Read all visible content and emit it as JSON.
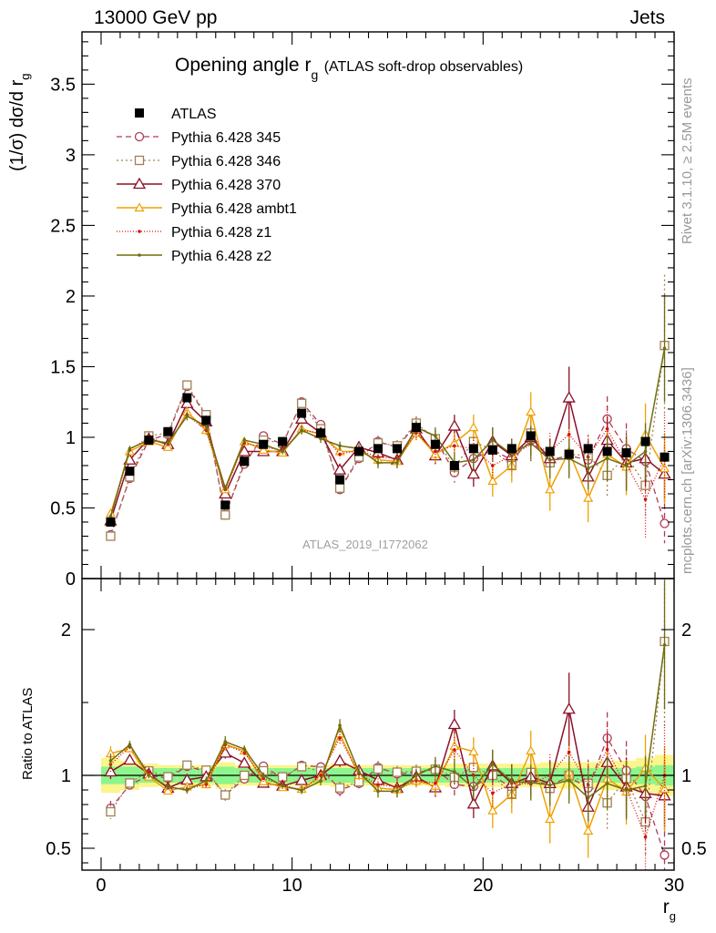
{
  "header": {
    "left": "13000 GeV pp",
    "right": "Jets"
  },
  "side": {
    "rivet": "Rivet 3.1.10, ≥ 2.5M events",
    "mcplots": "mcplots.cern.ch [arXiv:1306.3436]"
  },
  "chart_data": {
    "type": "line",
    "title_main": "Opening angle r",
    "title_sub": "g",
    "title_paren": "(ATLAS soft-drop observables)",
    "ylabel": "(1/σ) dσ/d r",
    "ylabel_sub": "g",
    "xlabel": "r",
    "xlabel_sub": "g",
    "watermark": "ATLAS_2019_I1772062",
    "ratio_ylabel": "Ratio to ATLAS",
    "xlim": [
      -1,
      30
    ],
    "ylim": [
      0,
      3.87
    ],
    "ratio_ylim": [
      0.35,
      2.35
    ],
    "x_ticks": [
      "0",
      "10",
      "20",
      "30"
    ],
    "y_ticks": [
      "0",
      "0.5",
      "1",
      "1.5",
      "2",
      "2.5",
      "3",
      "3.5"
    ],
    "ratio_ticks": [
      "0.5",
      "1",
      "2"
    ],
    "x": [
      0.5,
      1.5,
      2.5,
      3.5,
      4.5,
      5.5,
      6.5,
      7.5,
      8.5,
      9.5,
      10.5,
      11.5,
      12.5,
      13.5,
      14.5,
      15.5,
      16.5,
      17.5,
      18.5,
      19.5,
      20.5,
      21.5,
      22.5,
      23.5,
      24.5,
      25.5,
      26.5,
      27.5,
      28.5,
      29.5
    ],
    "data": {
      "name": "ATLAS",
      "values": [
        0.4,
        0.76,
        0.98,
        1.04,
        1.28,
        1.12,
        0.52,
        0.83,
        0.95,
        0.97,
        1.17,
        1.03,
        0.7,
        0.9,
        0.92,
        0.92,
        1.07,
        0.95,
        0.8,
        0.92,
        0.91,
        0.92,
        1.01,
        0.9,
        0.88,
        0.92,
        0.9,
        0.89,
        0.97,
        0.86
      ]
    },
    "bands": {
      "inner": [
        0.06,
        0.06,
        0.05,
        0.05,
        0.05,
        0.05,
        0.06,
        0.05,
        0.05,
        0.05,
        0.05,
        0.05,
        0.05,
        0.05,
        0.05,
        0.05,
        0.05,
        0.05,
        0.05,
        0.05,
        0.05,
        0.05,
        0.05,
        0.05,
        0.05,
        0.05,
        0.05,
        0.05,
        0.06,
        0.07
      ],
      "outer": [
        0.12,
        0.1,
        0.08,
        0.07,
        0.07,
        0.07,
        0.09,
        0.07,
        0.07,
        0.07,
        0.07,
        0.07,
        0.08,
        0.07,
        0.07,
        0.07,
        0.07,
        0.07,
        0.08,
        0.08,
        0.08,
        0.08,
        0.08,
        0.09,
        0.09,
        0.09,
        0.1,
        0.1,
        0.12,
        0.14
      ],
      "colors": {
        "inner": "#8cf58c",
        "outer": "#faf58c"
      }
    },
    "series": [
      {
        "name": "Pythia 6.428 345",
        "color": "#b03a5a",
        "dash": "6,4",
        "marker": "circle",
        "width": 1.3,
        "values": [
          0.31,
          0.71,
          0.98,
          1.02,
          1.36,
          1.15,
          0.45,
          0.81,
          1.01,
          0.95,
          1.25,
          1.09,
          0.63,
          0.85,
          0.97,
          0.93,
          1.09,
          0.99,
          0.75,
          0.85,
          0.91,
          0.84,
          0.98,
          0.84,
          0.87,
          0.84,
          1.13,
          0.92,
          0.83,
          0.39
        ],
        "errors": [
          0.02,
          0.02,
          0.02,
          0.02,
          0.03,
          0.03,
          0.02,
          0.02,
          0.02,
          0.02,
          0.03,
          0.03,
          0.03,
          0.03,
          0.04,
          0.04,
          0.05,
          0.06,
          0.07,
          0.08,
          0.09,
          0.1,
          0.12,
          0.12,
          0.14,
          0.14,
          0.16,
          0.18,
          0.22,
          0.14
        ]
      },
      {
        "name": "Pythia 6.428 346",
        "color": "#a08050",
        "dash": "2,3",
        "marker": "square",
        "width": 1.3,
        "values": [
          0.3,
          0.72,
          1.01,
          1.03,
          1.37,
          1.16,
          0.45,
          0.83,
          0.98,
          0.96,
          1.24,
          1.06,
          0.64,
          0.86,
          0.96,
          0.94,
          1.1,
          0.99,
          0.79,
          0.97,
          0.91,
          0.8,
          1.03,
          0.82,
          0.88,
          0.87,
          0.73,
          0.87,
          0.66,
          1.65
        ],
        "errors": [
          0.02,
          0.02,
          0.02,
          0.02,
          0.03,
          0.03,
          0.02,
          0.02,
          0.02,
          0.02,
          0.03,
          0.03,
          0.03,
          0.03,
          0.04,
          0.04,
          0.05,
          0.06,
          0.07,
          0.08,
          0.09,
          0.1,
          0.12,
          0.13,
          0.14,
          0.15,
          0.16,
          0.18,
          0.22,
          0.5
        ]
      },
      {
        "name": "Pythia 6.428 370",
        "color": "#8c1028",
        "dash": "",
        "marker": "triangle",
        "width": 1.5,
        "values": [
          0.41,
          0.84,
          0.99,
          0.95,
          1.24,
          1.11,
          0.6,
          0.9,
          0.9,
          0.9,
          1.13,
          1.03,
          0.77,
          0.93,
          0.89,
          0.84,
          1.06,
          0.87,
          1.08,
          0.74,
          0.97,
          0.87,
          1.0,
          0.85,
          1.28,
          0.72,
          0.98,
          0.82,
          0.85,
          0.74
        ],
        "errors": [
          0.02,
          0.02,
          0.02,
          0.02,
          0.03,
          0.03,
          0.02,
          0.02,
          0.02,
          0.02,
          0.03,
          0.03,
          0.03,
          0.03,
          0.04,
          0.04,
          0.05,
          0.06,
          0.08,
          0.09,
          0.1,
          0.12,
          0.13,
          0.14,
          0.22,
          0.16,
          0.17,
          0.18,
          0.2,
          0.2
        ]
      },
      {
        "name": "Pythia 6.428 ambt1",
        "color": "#f0a000",
        "dash": "",
        "marker": "triangle-small",
        "width": 1.5,
        "values": [
          0.46,
          0.9,
          0.97,
          0.93,
          1.18,
          1.05,
          0.63,
          0.97,
          0.91,
          0.89,
          1.06,
          1.02,
          0.9,
          0.9,
          0.84,
          0.83,
          1.03,
          0.88,
          0.96,
          1.07,
          0.69,
          0.8,
          1.18,
          0.63,
          0.9,
          0.57,
          0.88,
          0.79,
          1.02,
          0.78
        ],
        "errors": [
          0.02,
          0.02,
          0.02,
          0.02,
          0.03,
          0.03,
          0.02,
          0.02,
          0.02,
          0.02,
          0.03,
          0.03,
          0.03,
          0.03,
          0.04,
          0.04,
          0.05,
          0.06,
          0.07,
          0.09,
          0.11,
          0.12,
          0.14,
          0.15,
          0.16,
          0.17,
          0.18,
          0.2,
          0.22,
          0.25
        ]
      },
      {
        "name": "Pythia 6.428 z1",
        "color": "#d41010",
        "dash": "1,2",
        "marker": "dot",
        "width": 1.3,
        "values": [
          0.43,
          0.91,
          1.0,
          0.95,
          1.16,
          1.05,
          0.63,
          0.96,
          0.93,
          0.91,
          1.05,
          1.03,
          0.88,
          0.91,
          0.86,
          0.85,
          1.03,
          0.9,
          0.94,
          0.92,
          0.8,
          0.87,
          0.95,
          0.9,
          1.02,
          0.86,
          1.06,
          0.81,
          0.56,
          0.86
        ],
        "errors": [
          0.02,
          0.02,
          0.02,
          0.02,
          0.03,
          0.03,
          0.02,
          0.02,
          0.02,
          0.02,
          0.03,
          0.03,
          0.03,
          0.03,
          0.04,
          0.04,
          0.05,
          0.06,
          0.07,
          0.08,
          0.09,
          0.1,
          0.12,
          0.13,
          0.14,
          0.15,
          0.16,
          0.18,
          0.28,
          0.3
        ]
      },
      {
        "name": "Pythia 6.428 z2",
        "color": "#6e6e10",
        "dash": "",
        "marker": "dot",
        "width": 1.5,
        "values": [
          0.44,
          0.92,
          0.98,
          0.96,
          1.15,
          1.08,
          0.64,
          0.98,
          0.95,
          0.9,
          1.05,
          0.99,
          0.94,
          0.92,
          0.82,
          0.82,
          1.07,
          1.01,
          0.82,
          0.84,
          0.98,
          0.88,
          0.96,
          0.84,
          0.85,
          0.78,
          0.85,
          0.8,
          0.9,
          1.63
        ],
        "errors": [
          0.02,
          0.02,
          0.02,
          0.02,
          0.03,
          0.03,
          0.02,
          0.02,
          0.02,
          0.02,
          0.03,
          0.03,
          0.03,
          0.03,
          0.04,
          0.04,
          0.05,
          0.06,
          0.07,
          0.08,
          0.09,
          0.1,
          0.12,
          0.13,
          0.14,
          0.15,
          0.16,
          0.18,
          0.2,
          0.38
        ]
      }
    ]
  }
}
